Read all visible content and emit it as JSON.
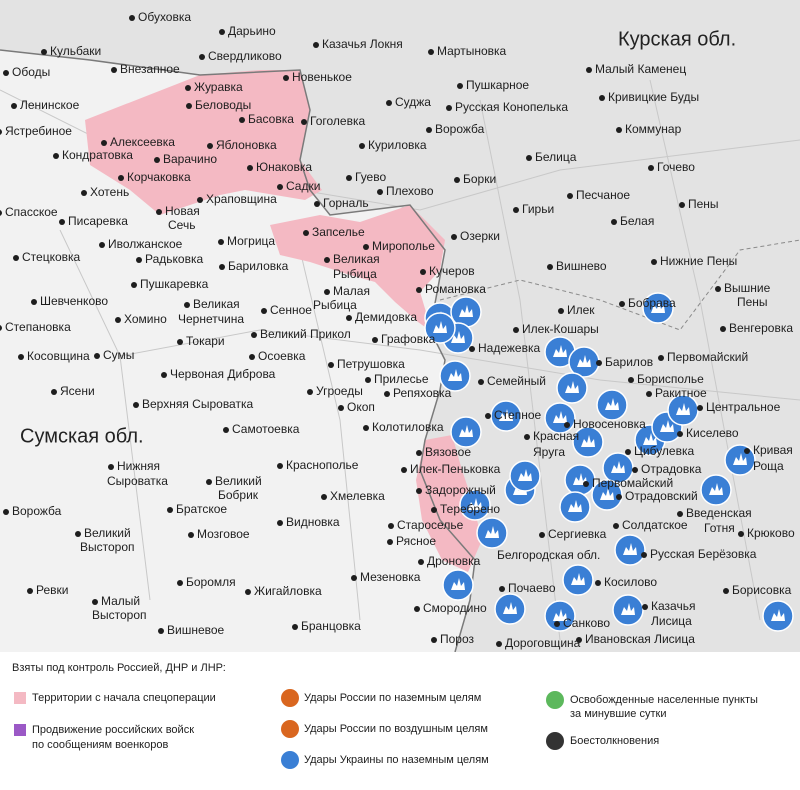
{
  "map": {
    "regions": [
      "Курская обл.",
      "Сумская обл."
    ],
    "places": [
      "Обуховка",
      "Дарьино",
      "Свердликово",
      "Казачья Локня",
      "Мартыновка",
      "Кульбаки",
      "Ободы",
      "Внезапное",
      "Журавка",
      "Новенькое",
      "Пушкарное",
      "Малый Каменец",
      "Беловоды",
      "Суджа",
      "Русская Конопелька",
      "Кривицкие Буды",
      "Ленинское",
      "Ястребиное",
      "Басовка",
      "Гоголевка",
      "Ворожба",
      "Коммунар",
      "Алексеевка",
      "Яблоновка",
      "Кондратовка",
      "Варачино",
      "Куриловка",
      "Белица",
      "Гочево",
      "Юнаковка",
      "Корчаковка",
      "Гуево",
      "Борки",
      "Хотень",
      "Садки",
      "Плехово",
      "Песчаное",
      "Пены",
      "Спасское",
      "Храповщина",
      "Горналь",
      "Гирьи",
      "Белая",
      "Писаревка",
      "Новая",
      "Сечь",
      "Запселье",
      "Озерки",
      "Иволжанское",
      "Могрица",
      "Мирополье",
      "Стецковка",
      "Радьковка",
      "Великая",
      "Рыбица",
      "Бариловка",
      "Нижние Пены",
      "Вишнево",
      "Кучеров",
      "Пушкаревка",
      "Романовка",
      "Вышние",
      "Пены",
      "Шевченково",
      "Великая",
      "Чернетчина",
      "Малая",
      "Рыбица",
      "Сенное",
      "Илек",
      "Бобрава",
      "Степановка",
      "Хомино",
      "Демидовка",
      "Илек-Кошары",
      "Венгеровка",
      "Великий Прикол",
      "Косовщина",
      "Сумы",
      "Токари",
      "Графовка",
      "Надежевка",
      "Барилов",
      "Первомайский",
      "Осоевка",
      "Петрушовка",
      "Прилесье",
      "Семейный",
      "Борисполье",
      "Ракитное",
      "Ясени",
      "Червоная Диброва",
      "Угроеды",
      "Репяховка",
      "Центральное",
      "Верхняя Сыроватка",
      "Окоп",
      "Степное",
      "Новосеновка",
      "Самотоевка",
      "Колотиловка",
      "Киселево",
      "Красная",
      "Яруга",
      "Цибулевка",
      "Кривая",
      "Роща",
      "Вязовое",
      "Нижняя",
      "Сыроватка",
      "Краснополье",
      "Илек-Пеньковка",
      "Отрадовка",
      "Первомайский",
      "Великий",
      "Бобрик",
      "Задорожный",
      "Отрадовский",
      "Хмелевка",
      "Теребрено",
      "Введенская",
      "Готня",
      "Ворожба",
      "Братское",
      "Видновка",
      "Староселье",
      "Солдатское",
      "Великий",
      "Выстороп",
      "Мозговое",
      "Рясное",
      "Сергиевка",
      "Крюково",
      "Белгородская обл.",
      "Русская Берёзовка",
      "Дроновка",
      "Мезеновка",
      "Боромля",
      "Жигайловка",
      "Почаево",
      "Косилово",
      "Борисовка",
      "Ревки",
      "Малый",
      "Выстороп",
      "Смородино",
      "Казачья",
      "Лисица",
      "Вишневое",
      "Бранцовка",
      "Санково",
      "Ивановская Лисица",
      "Пороз",
      "Дороговщина"
    ]
  },
  "legend": {
    "title": "Взяты под контроль Россией, ДНР и ЛНР:",
    "items": [
      "Территории с начала спецоперации",
      "Продвижение российских войск",
      "по сообщениям военкоров",
      "Удары России по наземным целям",
      "Удары России по воздушным целям",
      "Удары Украины по наземным целям",
      "Освобожденные населенные пункты",
      "за минувшие сутки",
      "Боестолкновения"
    ]
  }
}
